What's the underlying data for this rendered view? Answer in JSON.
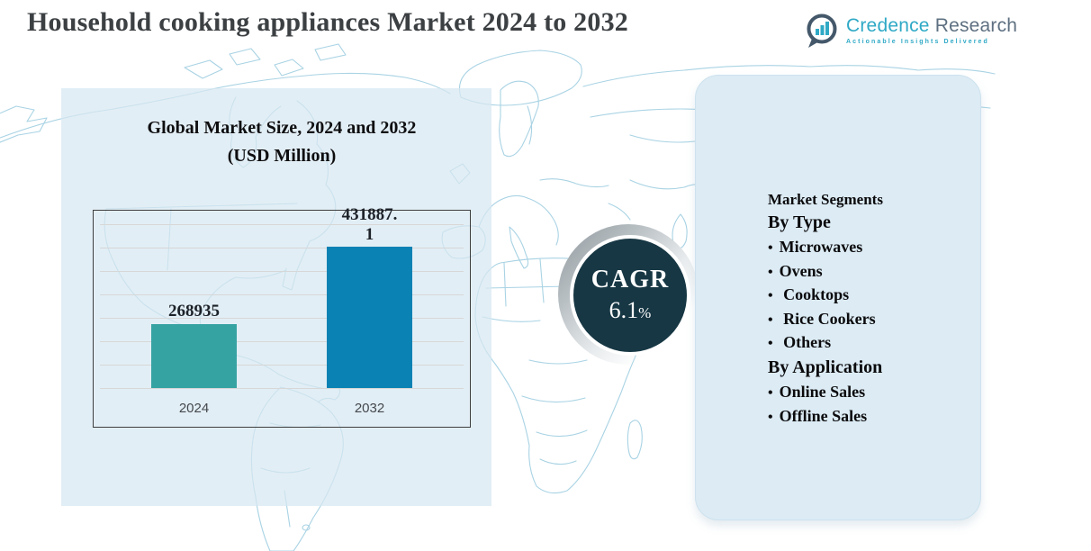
{
  "title": "Household cooking appliances Market 2024 to 2032",
  "logo": {
    "brand_primary": "Credence",
    "brand_secondary": "Research",
    "tagline": "Actionable Insights Delivered",
    "icon": "bar-chart-speech-bubble-icon"
  },
  "chart_data": {
    "type": "bar",
    "title": "Global Market Size, 2024 and 2032",
    "subtitle": "(USD Million)",
    "categories": [
      "2024",
      "2032"
    ],
    "values": [
      268935,
      431887.1
    ],
    "value_label_lines": [
      [
        "268935"
      ],
      [
        "431887.",
        "1"
      ]
    ],
    "bar_colors": [
      "#36a3a3",
      "#0a82b4"
    ],
    "ylim": [
      135000,
      480000
    ],
    "grid": true,
    "legend": false,
    "xlabel": "",
    "ylabel": ""
  },
  "cagr": {
    "label": "CAGR",
    "value": "6.1",
    "percent_sign": "%"
  },
  "segments": {
    "heading": "Market Segments",
    "groups": [
      {
        "title": "By Type",
        "items": [
          "Microwaves",
          "Ovens",
          " Cooktops",
          " Rice Cookers",
          " Others"
        ]
      },
      {
        "title": "By Application",
        "items": [
          "Online Sales",
          "Offline Sales"
        ]
      }
    ],
    "bullet_glyph": "•"
  },
  "colors": {
    "bar_2024": "#36a3a3",
    "bar_2032": "#0a82b4",
    "cagr_circle": "#173744",
    "right_panel_bg": "#dcebf4",
    "left_panel_bg": "#d7e7f1",
    "map_stroke": "#a9d3e4",
    "logo_teal": "#2fa9c6",
    "logo_slate": "#5e7081",
    "title_color": "#3c4043"
  }
}
